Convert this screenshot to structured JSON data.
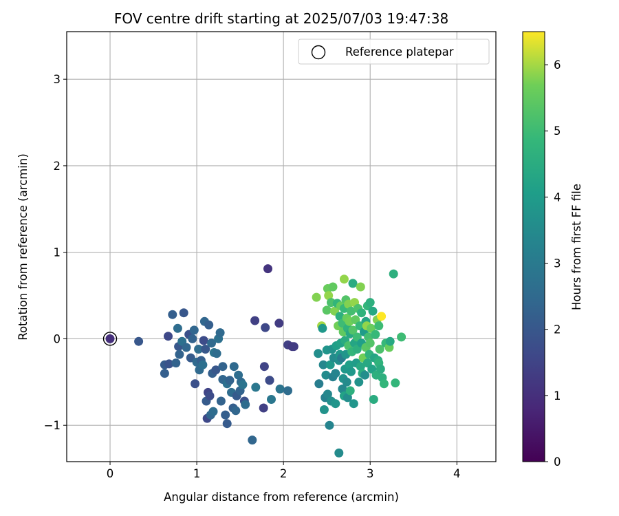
{
  "chart_data": {
    "type": "scatter",
    "title": "FOV centre drift starting at 2025/07/03 19:47:38",
    "xlabel": "Angular distance from reference (arcmin)",
    "ylabel": "Rotation from reference (arcmin)",
    "xlim": [
      -0.5,
      4.45
    ],
    "ylim": [
      -1.42,
      3.55
    ],
    "xticks": [
      0,
      1,
      2,
      3,
      4
    ],
    "yticks": [
      -1,
      0,
      1,
      2,
      3
    ],
    "xtick_labels": [
      "0",
      "1",
      "2",
      "3",
      "4"
    ],
    "ytick_labels": [
      "−1",
      "0",
      "1",
      "2",
      "3"
    ],
    "grid": true,
    "legend": {
      "position": "top-right",
      "entries": [
        "Reference platepar"
      ]
    },
    "reference_point": {
      "x": 0,
      "y": 0
    },
    "colorbar": {
      "label": "Hours from first FF file",
      "range": [
        0,
        6.5
      ],
      "ticks": [
        0,
        1,
        2,
        3,
        4,
        5,
        6
      ],
      "colormap": "viridis"
    },
    "points": [
      {
        "x": 0.0,
        "y": 0.0,
        "c": 1.0
      },
      {
        "x": 0.33,
        "y": -0.03,
        "c": 2.0
      },
      {
        "x": 0.63,
        "y": -0.3,
        "c": 2.1
      },
      {
        "x": 0.63,
        "y": -0.4,
        "c": 2.2
      },
      {
        "x": 0.67,
        "y": 0.03,
        "c": 1.6
      },
      {
        "x": 0.68,
        "y": -0.29,
        "c": 1.9
      },
      {
        "x": 0.72,
        "y": 0.28,
        "c": 2.2
      },
      {
        "x": 0.76,
        "y": -0.28,
        "c": 2.3
      },
      {
        "x": 0.78,
        "y": 0.12,
        "c": 2.6
      },
      {
        "x": 0.79,
        "y": -0.09,
        "c": 2.0
      },
      {
        "x": 0.8,
        "y": -0.18,
        "c": 2.3
      },
      {
        "x": 0.83,
        "y": -0.03,
        "c": 2.7
      },
      {
        "x": 0.85,
        "y": 0.3,
        "c": 2.0
      },
      {
        "x": 0.88,
        "y": -0.1,
        "c": 2.4
      },
      {
        "x": 0.91,
        "y": 0.05,
        "c": 1.8
      },
      {
        "x": 0.93,
        "y": -0.22,
        "c": 2.1
      },
      {
        "x": 0.95,
        "y": 0.0,
        "c": 2.3
      },
      {
        "x": 0.97,
        "y": 0.1,
        "c": 2.4
      },
      {
        "x": 0.98,
        "y": -0.52,
        "c": 1.8
      },
      {
        "x": 1.0,
        "y": -0.27,
        "c": 2.5
      },
      {
        "x": 1.02,
        "y": -0.12,
        "c": 2.6
      },
      {
        "x": 1.03,
        "y": -0.36,
        "c": 2.5
      },
      {
        "x": 1.05,
        "y": -0.25,
        "c": 2.2
      },
      {
        "x": 1.07,
        "y": -0.3,
        "c": 2.7
      },
      {
        "x": 1.08,
        "y": -0.02,
        "c": 1.7
      },
      {
        "x": 1.09,
        "y": 0.2,
        "c": 2.4
      },
      {
        "x": 1.1,
        "y": -0.12,
        "c": 2.0
      },
      {
        "x": 1.11,
        "y": -0.72,
        "c": 2.1
      },
      {
        "x": 1.12,
        "y": -0.92,
        "c": 1.6
      },
      {
        "x": 1.13,
        "y": -0.62,
        "c": 1.5
      },
      {
        "x": 1.14,
        "y": 0.16,
        "c": 2.2
      },
      {
        "x": 1.15,
        "y": -0.66,
        "c": 1.7
      },
      {
        "x": 1.16,
        "y": -0.88,
        "c": 2.4
      },
      {
        "x": 1.17,
        "y": -0.05,
        "c": 2.5
      },
      {
        "x": 1.18,
        "y": -0.4,
        "c": 2.2
      },
      {
        "x": 1.19,
        "y": -0.84,
        "c": 2.6
      },
      {
        "x": 1.2,
        "y": -0.16,
        "c": 2.8
      },
      {
        "x": 1.22,
        "y": -0.36,
        "c": 2.0
      },
      {
        "x": 1.23,
        "y": -0.17,
        "c": 2.6
      },
      {
        "x": 1.25,
        "y": 0.0,
        "c": 2.7
      },
      {
        "x": 1.27,
        "y": 0.07,
        "c": 2.5
      },
      {
        "x": 1.28,
        "y": -0.72,
        "c": 2.3
      },
      {
        "x": 1.3,
        "y": -0.32,
        "c": 2.3
      },
      {
        "x": 1.3,
        "y": -0.47,
        "c": 2.4
      },
      {
        "x": 1.33,
        "y": -0.88,
        "c": 2.2
      },
      {
        "x": 1.35,
        "y": -0.98,
        "c": 2.1
      },
      {
        "x": 1.35,
        "y": -0.52,
        "c": 2.7
      },
      {
        "x": 1.38,
        "y": -0.48,
        "c": 2.3
      },
      {
        "x": 1.4,
        "y": -0.62,
        "c": 2.6
      },
      {
        "x": 1.42,
        "y": -0.8,
        "c": 2.2
      },
      {
        "x": 1.43,
        "y": -0.32,
        "c": 2.5
      },
      {
        "x": 1.45,
        "y": -0.83,
        "c": 2.4
      },
      {
        "x": 1.46,
        "y": -0.66,
        "c": 2.1
      },
      {
        "x": 1.48,
        "y": -0.42,
        "c": 2.6
      },
      {
        "x": 1.5,
        "y": -0.6,
        "c": 2.3
      },
      {
        "x": 1.51,
        "y": -0.5,
        "c": 2.5
      },
      {
        "x": 1.53,
        "y": -0.53,
        "c": 2.8
      },
      {
        "x": 1.55,
        "y": -0.72,
        "c": 1.8
      },
      {
        "x": 1.56,
        "y": -0.76,
        "c": 2.6
      },
      {
        "x": 1.64,
        "y": -1.17,
        "c": 2.4
      },
      {
        "x": 1.67,
        "y": 0.21,
        "c": 1.4
      },
      {
        "x": 1.68,
        "y": -0.56,
        "c": 2.9
      },
      {
        "x": 1.77,
        "y": -0.8,
        "c": 1.4
      },
      {
        "x": 1.78,
        "y": -0.32,
        "c": 1.5
      },
      {
        "x": 1.79,
        "y": 0.13,
        "c": 1.6
      },
      {
        "x": 1.82,
        "y": 0.81,
        "c": 1.1
      },
      {
        "x": 1.84,
        "y": -0.48,
        "c": 1.3
      },
      {
        "x": 1.84,
        "y": -0.48,
        "c": 1.7
      },
      {
        "x": 1.86,
        "y": -0.7,
        "c": 2.9
      },
      {
        "x": 1.95,
        "y": 0.18,
        "c": 1.3
      },
      {
        "x": 1.96,
        "y": -0.58,
        "c": 2.8
      },
      {
        "x": 2.05,
        "y": -0.6,
        "c": 2.6
      },
      {
        "x": 2.05,
        "y": -0.07,
        "c": 1.4
      },
      {
        "x": 2.1,
        "y": -0.09,
        "c": 1.2
      },
      {
        "x": 2.12,
        "y": -0.09,
        "c": 1.3
      },
      {
        "x": 2.38,
        "y": 0.48,
        "c": 5.8
      },
      {
        "x": 2.4,
        "y": -0.17,
        "c": 3.6
      },
      {
        "x": 2.41,
        "y": -0.52,
        "c": 3.1
      },
      {
        "x": 2.44,
        "y": 0.15,
        "c": 6.0
      },
      {
        "x": 2.45,
        "y": 0.12,
        "c": 3.9
      },
      {
        "x": 2.46,
        "y": -0.3,
        "c": 3.4
      },
      {
        "x": 2.47,
        "y": -0.82,
        "c": 3.7
      },
      {
        "x": 2.48,
        "y": -0.68,
        "c": 3.2
      },
      {
        "x": 2.49,
        "y": -0.42,
        "c": 3.5
      },
      {
        "x": 2.5,
        "y": 0.33,
        "c": 5.4
      },
      {
        "x": 2.5,
        "y": -0.13,
        "c": 3.8
      },
      {
        "x": 2.51,
        "y": 0.58,
        "c": 5.6
      },
      {
        "x": 2.51,
        "y": -0.64,
        "c": 3.4
      },
      {
        "x": 2.52,
        "y": 0.5,
        "c": 5.9
      },
      {
        "x": 2.53,
        "y": -1.0,
        "c": 3.3
      },
      {
        "x": 2.54,
        "y": -0.3,
        "c": 3.9
      },
      {
        "x": 2.55,
        "y": 0.42,
        "c": 5.2
      },
      {
        "x": 2.55,
        "y": -0.72,
        "c": 3.6
      },
      {
        "x": 2.56,
        "y": -0.12,
        "c": 3.7
      },
      {
        "x": 2.57,
        "y": 0.6,
        "c": 5.5
      },
      {
        "x": 2.57,
        "y": -0.44,
        "c": 3.2
      },
      {
        "x": 2.58,
        "y": -0.22,
        "c": 3.5
      },
      {
        "x": 2.59,
        "y": 0.32,
        "c": 5.8
      },
      {
        "x": 2.6,
        "y": -0.75,
        "c": 3.8
      },
      {
        "x": 2.6,
        "y": -0.4,
        "c": 3.3
      },
      {
        "x": 2.61,
        "y": -0.08,
        "c": 4.1
      },
      {
        "x": 2.62,
        "y": 0.41,
        "c": 4.8
      },
      {
        "x": 2.63,
        "y": 0.15,
        "c": 5.7
      },
      {
        "x": 2.64,
        "y": -1.32,
        "c": 3.5
      },
      {
        "x": 2.64,
        "y": -0.25,
        "c": 3.6
      },
      {
        "x": 2.65,
        "y": 0.26,
        "c": 4.6
      },
      {
        "x": 2.65,
        "y": -0.18,
        "c": 3.9
      },
      {
        "x": 2.66,
        "y": 0.38,
        "c": 5.6
      },
      {
        "x": 2.66,
        "y": -0.05,
        "c": 4.2
      },
      {
        "x": 2.67,
        "y": -0.22,
        "c": 3.1
      },
      {
        "x": 2.68,
        "y": 0.18,
        "c": 5.0
      },
      {
        "x": 2.68,
        "y": -0.58,
        "c": 3.4
      },
      {
        "x": 2.69,
        "y": 0.08,
        "c": 5.5
      },
      {
        "x": 2.69,
        "y": -0.46,
        "c": 3.7
      },
      {
        "x": 2.7,
        "y": 0.69,
        "c": 5.9
      },
      {
        "x": 2.7,
        "y": 0.35,
        "c": 4.9
      },
      {
        "x": 2.7,
        "y": -0.66,
        "c": 4.2
      },
      {
        "x": 2.71,
        "y": -0.02,
        "c": 4.5
      },
      {
        "x": 2.71,
        "y": -0.35,
        "c": 3.9
      },
      {
        "x": 2.72,
        "y": 0.45,
        "c": 5.3
      },
      {
        "x": 2.72,
        "y": -0.18,
        "c": 3.8
      },
      {
        "x": 2.73,
        "y": 0.24,
        "c": 5.6
      },
      {
        "x": 2.73,
        "y": -0.5,
        "c": 3.5
      },
      {
        "x": 2.74,
        "y": 0.12,
        "c": 4.7
      },
      {
        "x": 2.74,
        "y": -0.68,
        "c": 3.6
      },
      {
        "x": 2.75,
        "y": 0.4,
        "c": 5.8
      },
      {
        "x": 2.75,
        "y": -0.08,
        "c": 5.2
      },
      {
        "x": 2.76,
        "y": 0.2,
        "c": 5.7
      },
      {
        "x": 2.76,
        "y": -0.3,
        "c": 4.1
      },
      {
        "x": 2.77,
        "y": 0.06,
        "c": 4.4
      },
      {
        "x": 2.77,
        "y": -0.6,
        "c": 4.6
      },
      {
        "x": 2.78,
        "y": 0.32,
        "c": 5.1
      },
      {
        "x": 2.78,
        "y": -0.38,
        "c": 3.9
      },
      {
        "x": 2.79,
        "y": -0.15,
        "c": 4.8
      },
      {
        "x": 2.8,
        "y": 0.64,
        "c": 4.5
      },
      {
        "x": 2.8,
        "y": 0.1,
        "c": 5.3
      },
      {
        "x": 2.81,
        "y": -0.75,
        "c": 3.8
      },
      {
        "x": 2.82,
        "y": 0.42,
        "c": 5.9
      },
      {
        "x": 2.82,
        "y": -0.05,
        "c": 4.3
      },
      {
        "x": 2.83,
        "y": 0.22,
        "c": 5.5
      },
      {
        "x": 2.84,
        "y": -0.28,
        "c": 4.0
      },
      {
        "x": 2.85,
        "y": 0.02,
        "c": 5.0
      },
      {
        "x": 2.85,
        "y": -0.12,
        "c": 4.6
      },
      {
        "x": 2.86,
        "y": 0.35,
        "c": 5.2
      },
      {
        "x": 2.87,
        "y": -0.5,
        "c": 3.7
      },
      {
        "x": 2.88,
        "y": 0.15,
        "c": 4.9
      },
      {
        "x": 2.89,
        "y": 0.6,
        "c": 5.8
      },
      {
        "x": 2.89,
        "y": -0.32,
        "c": 4.4
      },
      {
        "x": 2.9,
        "y": 0.3,
        "c": 4.7
      },
      {
        "x": 2.9,
        "y": -0.05,
        "c": 4.1
      },
      {
        "x": 2.91,
        "y": -0.4,
        "c": 4.5
      },
      {
        "x": 2.92,
        "y": -0.22,
        "c": 5.7
      },
      {
        "x": 2.93,
        "y": 0.08,
        "c": 4.0
      },
      {
        "x": 2.94,
        "y": -0.42,
        "c": 3.6
      },
      {
        "x": 2.95,
        "y": 0.2,
        "c": 4.3
      },
      {
        "x": 2.95,
        "y": -0.1,
        "c": 5.4
      },
      {
        "x": 2.96,
        "y": 0.15,
        "c": 5.9
      },
      {
        "x": 2.97,
        "y": 0.38,
        "c": 4.8
      },
      {
        "x": 2.97,
        "y": -0.28,
        "c": 4.4
      },
      {
        "x": 2.98,
        "y": 0.02,
        "c": 5.1
      },
      {
        "x": 2.99,
        "y": -0.18,
        "c": 4.7
      },
      {
        "x": 3.0,
        "y": 0.42,
        "c": 4.6
      },
      {
        "x": 3.0,
        "y": -0.05,
        "c": 5.3
      },
      {
        "x": 3.01,
        "y": 0.12,
        "c": 5.6
      },
      {
        "x": 3.02,
        "y": -0.35,
        "c": 4.2
      },
      {
        "x": 3.03,
        "y": 0.32,
        "c": 4.4
      },
      {
        "x": 3.04,
        "y": -0.7,
        "c": 4.5
      },
      {
        "x": 3.05,
        "y": -0.22,
        "c": 4.3
      },
      {
        "x": 3.06,
        "y": 0.05,
        "c": 4.9
      },
      {
        "x": 3.07,
        "y": -0.42,
        "c": 4.6
      },
      {
        "x": 3.08,
        "y": 0.22,
        "c": 5.8
      },
      {
        "x": 3.09,
        "y": -0.25,
        "c": 4.5
      },
      {
        "x": 3.1,
        "y": 0.15,
        "c": 5.0
      },
      {
        "x": 3.1,
        "y": -0.28,
        "c": 4.7
      },
      {
        "x": 3.11,
        "y": -0.12,
        "c": 5.2
      },
      {
        "x": 3.12,
        "y": -0.35,
        "c": 4.5
      },
      {
        "x": 3.13,
        "y": 0.26,
        "c": 6.5
      },
      {
        "x": 3.14,
        "y": -0.45,
        "c": 4.6
      },
      {
        "x": 3.16,
        "y": -0.52,
        "c": 4.8
      },
      {
        "x": 3.18,
        "y": -0.05,
        "c": 4.9
      },
      {
        "x": 3.22,
        "y": -0.1,
        "c": 5.6
      },
      {
        "x": 3.23,
        "y": -0.03,
        "c": 4.4
      },
      {
        "x": 3.27,
        "y": 0.75,
        "c": 4.6
      },
      {
        "x": 3.29,
        "y": -0.51,
        "c": 4.8
      },
      {
        "x": 3.36,
        "y": 0.02,
        "c": 5.0
      }
    ]
  }
}
